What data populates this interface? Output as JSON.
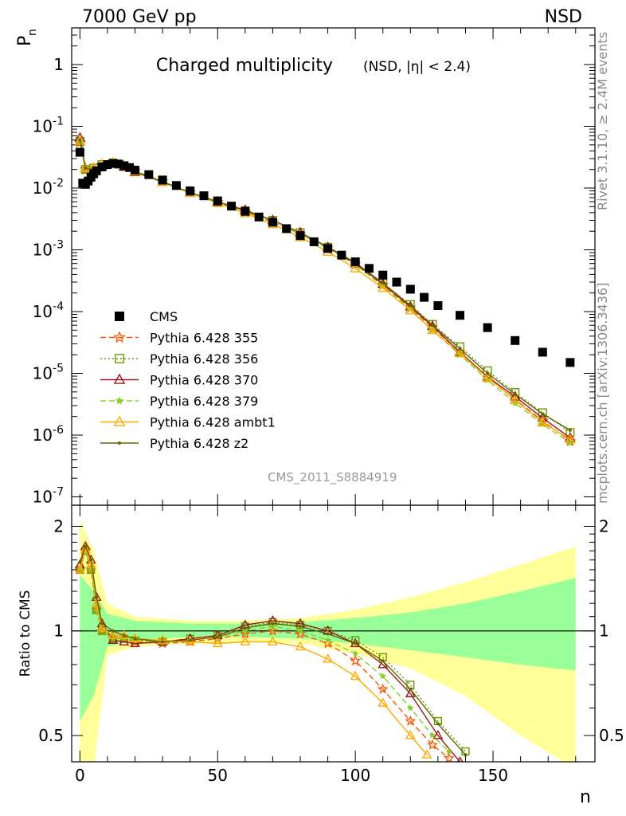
{
  "header": {
    "energy": "7000 GeV pp",
    "process": "NSD"
  },
  "side_text": {
    "rivet": "Rivet 3.1.10, ≥ 2.4M events",
    "source": "mcplots.cern.ch [arXiv:1306.3436]"
  },
  "analysis_id": "CMS_2011_S8884919",
  "legend_entries": [
    "CMS",
    "Pythia 6.428 355",
    "Pythia 6.428 356",
    "Pythia 6.428 370",
    "Pythia 6.428 379",
    "Pythia 6.428 ambt1",
    "Pythia 6.428 z2"
  ],
  "chart_data": [
    {
      "type": "scatter",
      "panel": "main",
      "title": "Charged multiplicity",
      "subtitle": "(NSD, |η| < 2.4)",
      "ylabel": "P_n",
      "xlabel": "",
      "y_scale": "log",
      "xlim": [
        -3,
        187
      ],
      "ylim": [
        1e-07,
        3
      ],
      "y_tick_labels": [
        "1",
        "10^-1",
        "10^-2",
        "10^-3",
        "10^-4",
        "10^-5",
        "10^-6",
        "10^-7"
      ],
      "legend_position": "lower-left",
      "series": [
        {
          "name": "CMS",
          "color": "#000000",
          "marker": "filled-square",
          "x": [
            0,
            1,
            2,
            3,
            4,
            5,
            6,
            8,
            10,
            12,
            14,
            16,
            18,
            20,
            25,
            30,
            35,
            40,
            45,
            50,
            55,
            60,
            65,
            70,
            75,
            80,
            85,
            90,
            95,
            100,
            105,
            110,
            115,
            120,
            125,
            130,
            138,
            148,
            158,
            168,
            178
          ],
          "y": [
            0.038,
            0.012,
            0.0115,
            0.013,
            0.015,
            0.017,
            0.019,
            0.022,
            0.024,
            0.025,
            0.0245,
            0.023,
            0.0215,
            0.0195,
            0.0165,
            0.0135,
            0.011,
            0.009,
            0.0075,
            0.0062,
            0.0051,
            0.0042,
            0.0034,
            0.0028,
            0.0022,
            0.0017,
            0.00135,
            0.00105,
            0.00082,
            0.00064,
            0.0005,
            0.00039,
            0.0003,
            0.00023,
            0.00017,
            0.000125,
            8.7e-05,
            5.5e-05,
            3.4e-05,
            2.2e-05,
            1.5e-05
          ]
        },
        {
          "name": "Pythia 6.428 355",
          "color": "#ff5500",
          "marker": "open-star",
          "line": "dashed",
          "x": [
            0,
            2,
            5,
            8,
            12,
            16,
            20,
            30,
            40,
            50,
            60,
            70,
            80,
            90,
            100,
            110,
            120,
            128,
            138,
            148,
            158,
            168,
            178
          ],
          "y": [
            0.055,
            0.02,
            0.021,
            0.024,
            0.0255,
            0.023,
            0.019,
            0.0128,
            0.0085,
            0.0059,
            0.0041,
            0.0028,
            0.0018,
            0.00108,
            0.00058,
            0.00027,
            0.000115,
            5.5e-05,
            2.2e-05,
            8.5e-06,
            3.8e-06,
            1.7e-06,
            8e-07
          ]
        },
        {
          "name": "Pythia 6.428 356",
          "color": "#669900",
          "marker": "open-square",
          "line": "dotted",
          "x": [
            0,
            2,
            5,
            8,
            12,
            16,
            20,
            30,
            40,
            50,
            60,
            70,
            80,
            90,
            100,
            110,
            120,
            128,
            138,
            148,
            158,
            168,
            178
          ],
          "y": [
            0.057,
            0.02,
            0.021,
            0.024,
            0.0255,
            0.023,
            0.019,
            0.0128,
            0.0085,
            0.006,
            0.0043,
            0.003,
            0.0019,
            0.0011,
            0.00061,
            0.00029,
            0.00013,
            6.2e-05,
            2.7e-05,
            1.1e-05,
            4.9e-06,
            2.3e-06,
            1.1e-06
          ]
        },
        {
          "name": "Pythia 6.428 370",
          "color": "#991a1a",
          "marker": "open-triangle",
          "line": "solid",
          "x": [
            0,
            2,
            5,
            8,
            12,
            16,
            20,
            30,
            40,
            50,
            60,
            70,
            80,
            90,
            100,
            110,
            120,
            128,
            138,
            148,
            158,
            168,
            178
          ],
          "y": [
            0.065,
            0.021,
            0.02,
            0.023,
            0.025,
            0.022,
            0.018,
            0.0125,
            0.0084,
            0.006,
            0.0044,
            0.003,
            0.0019,
            0.0011,
            0.0006,
            0.00028,
            0.00012,
            5.8e-05,
            2.2e-05,
            8.8e-06,
            4.2e-06,
            1.9e-06,
            9e-07
          ]
        },
        {
          "name": "Pythia 6.428 379",
          "color": "#88cc22",
          "marker": "filled-star",
          "line": "dashed",
          "x": [
            0,
            2,
            5,
            8,
            12,
            16,
            20,
            30,
            40,
            50,
            60,
            70,
            80,
            90,
            100,
            110,
            120,
            128,
            138,
            148,
            158,
            168,
            178
          ],
          "y": [
            0.056,
            0.02,
            0.021,
            0.024,
            0.0255,
            0.023,
            0.019,
            0.0128,
            0.0085,
            0.006,
            0.0042,
            0.0029,
            0.0018,
            0.00105,
            0.00057,
            0.00026,
            0.00011,
            5e-05,
            2e-05,
            7.8e-06,
            3.3e-06,
            1.5e-06,
            7.5e-07
          ]
        },
        {
          "name": "Pythia 6.428 ambt1",
          "color": "#ffaa00",
          "marker": "open-triangle",
          "line": "solid",
          "x": [
            0,
            2,
            5,
            8,
            12,
            16,
            20,
            30,
            40,
            50,
            60,
            70,
            80,
            90,
            100,
            110,
            120,
            128,
            138,
            148,
            158,
            168,
            178
          ],
          "y": [
            0.058,
            0.021,
            0.021,
            0.024,
            0.0255,
            0.023,
            0.0185,
            0.0125,
            0.0083,
            0.0057,
            0.0039,
            0.0026,
            0.0016,
            0.00093,
            0.0005,
            0.00024,
            0.000105,
            5e-05,
            2.1e-05,
            8.5e-06,
            3.7e-06,
            1.6e-06,
            8.5e-07
          ]
        },
        {
          "name": "Pythia 6.428 z2",
          "color": "#666600",
          "marker": "small-dot",
          "line": "solid",
          "x": [
            0,
            2,
            5,
            8,
            12,
            16,
            20,
            30,
            40,
            50,
            60,
            70,
            80,
            90,
            100,
            110,
            120,
            128,
            138,
            148,
            158,
            168,
            178
          ],
          "y": [
            0.06,
            0.021,
            0.02,
            0.023,
            0.025,
            0.022,
            0.0185,
            0.0126,
            0.0085,
            0.006,
            0.0043,
            0.003,
            0.0019,
            0.00112,
            0.00062,
            0.00029,
            0.000125,
            6e-05,
            2.5e-05,
            1e-05,
            4.6e-06,
            2.2e-06,
            1.2e-06
          ]
        }
      ]
    },
    {
      "type": "line",
      "panel": "ratio",
      "ylabel": "Ratio to CMS",
      "xlabel": "n",
      "y_scale": "log",
      "xlim": [
        -3,
        187
      ],
      "ylim": [
        0.42,
        2.3
      ],
      "x_ticks": [
        0,
        50,
        100,
        150
      ],
      "y_ticks": [
        0.5,
        1,
        2
      ],
      "reference_line": 1,
      "uncertainty_bands": {
        "x": [
          0,
          5,
          10,
          20,
          40,
          60,
          80,
          100,
          120,
          140,
          160,
          180
        ],
        "inner_lower": [
          0.55,
          0.65,
          0.9,
          0.94,
          0.96,
          0.96,
          0.95,
          0.92,
          0.88,
          0.84,
          0.8,
          0.77
        ],
        "inner_upper": [
          1.45,
          1.3,
          1.12,
          1.07,
          1.05,
          1.05,
          1.06,
          1.09,
          1.13,
          1.2,
          1.3,
          1.42
        ],
        "outer_lower": [
          0.35,
          0.4,
          0.85,
          0.9,
          0.92,
          0.93,
          0.92,
          0.86,
          0.78,
          0.65,
          0.5,
          0.4
        ],
        "outer_upper": [
          2.1,
          1.7,
          1.2,
          1.1,
          1.07,
          1.07,
          1.09,
          1.15,
          1.25,
          1.38,
          1.55,
          1.75
        ],
        "inner_color": "#99ff99",
        "outer_color": "#ffff99"
      },
      "series": [
        {
          "name": "Pythia 6.428 355",
          "color": "#ff5500",
          "marker": "open-star",
          "line": "dashed",
          "x": [
            0,
            2,
            4,
            6,
            8,
            12,
            16,
            20,
            30,
            40,
            50,
            60,
            70,
            80,
            90,
            100,
            110,
            120,
            128,
            134
          ],
          "y": [
            1.5,
            1.7,
            1.5,
            1.15,
            1.0,
            0.95,
            0.95,
            0.93,
            0.92,
            0.93,
            0.95,
            0.98,
            1.0,
            0.98,
            0.92,
            0.82,
            0.68,
            0.55,
            0.47,
            0.43
          ]
        },
        {
          "name": "Pythia 6.428 356",
          "color": "#669900",
          "marker": "open-square",
          "line": "dotted",
          "x": [
            0,
            2,
            4,
            6,
            8,
            12,
            16,
            20,
            30,
            40,
            50,
            60,
            70,
            80,
            90,
            100,
            110,
            120,
            130,
            140
          ],
          "y": [
            1.5,
            1.7,
            1.5,
            1.15,
            1.0,
            0.95,
            0.95,
            0.94,
            0.93,
            0.95,
            0.97,
            1.03,
            1.06,
            1.04,
            1.0,
            0.94,
            0.84,
            0.7,
            0.55,
            0.45
          ]
        },
        {
          "name": "Pythia 6.428 370",
          "color": "#991a1a",
          "marker": "open-triangle",
          "line": "solid",
          "x": [
            0,
            2,
            4,
            6,
            8,
            12,
            16,
            20,
            30,
            40,
            50,
            60,
            70,
            80,
            90,
            100,
            110,
            120,
            130,
            138
          ],
          "y": [
            1.55,
            1.75,
            1.6,
            1.25,
            1.05,
            0.94,
            0.93,
            0.92,
            0.93,
            0.95,
            0.97,
            1.04,
            1.07,
            1.05,
            1.0,
            0.92,
            0.8,
            0.66,
            0.5,
            0.42
          ]
        },
        {
          "name": "Pythia 6.428 379",
          "color": "#88cc22",
          "marker": "filled-star",
          "line": "dashed",
          "x": [
            0,
            2,
            4,
            6,
            8,
            12,
            16,
            20,
            30,
            40,
            50,
            60,
            70,
            80,
            90,
            100,
            110,
            120,
            128,
            134
          ],
          "y": [
            1.5,
            1.7,
            1.5,
            1.15,
            1.0,
            0.95,
            0.95,
            0.94,
            0.93,
            0.94,
            0.96,
            1.0,
            1.03,
            1.0,
            0.94,
            0.86,
            0.74,
            0.6,
            0.5,
            0.45
          ]
        },
        {
          "name": "Pythia 6.428 ambt1",
          "color": "#ffaa00",
          "marker": "open-triangle",
          "line": "solid",
          "x": [
            0,
            2,
            4,
            6,
            8,
            12,
            16,
            20,
            30,
            40,
            50,
            60,
            70,
            80,
            90,
            100,
            110,
            120,
            126
          ],
          "y": [
            1.5,
            1.72,
            1.55,
            1.2,
            1.02,
            0.97,
            0.97,
            0.95,
            0.94,
            0.93,
            0.92,
            0.93,
            0.93,
            0.9,
            0.83,
            0.74,
            0.62,
            0.5,
            0.44
          ]
        },
        {
          "name": "Pythia 6.428 z2",
          "color": "#666600",
          "marker": "small-dot",
          "line": "solid",
          "x": [
            0,
            2,
            4,
            6,
            8,
            12,
            16,
            20,
            30,
            40,
            50,
            60,
            70,
            80,
            90,
            100,
            110,
            120,
            130,
            140
          ],
          "y": [
            1.58,
            1.75,
            1.6,
            1.25,
            1.05,
            1.0,
            0.97,
            0.95,
            0.93,
            0.94,
            0.96,
            1.02,
            1.05,
            1.03,
            0.98,
            0.92,
            0.82,
            0.68,
            0.54,
            0.44
          ]
        }
      ]
    }
  ]
}
